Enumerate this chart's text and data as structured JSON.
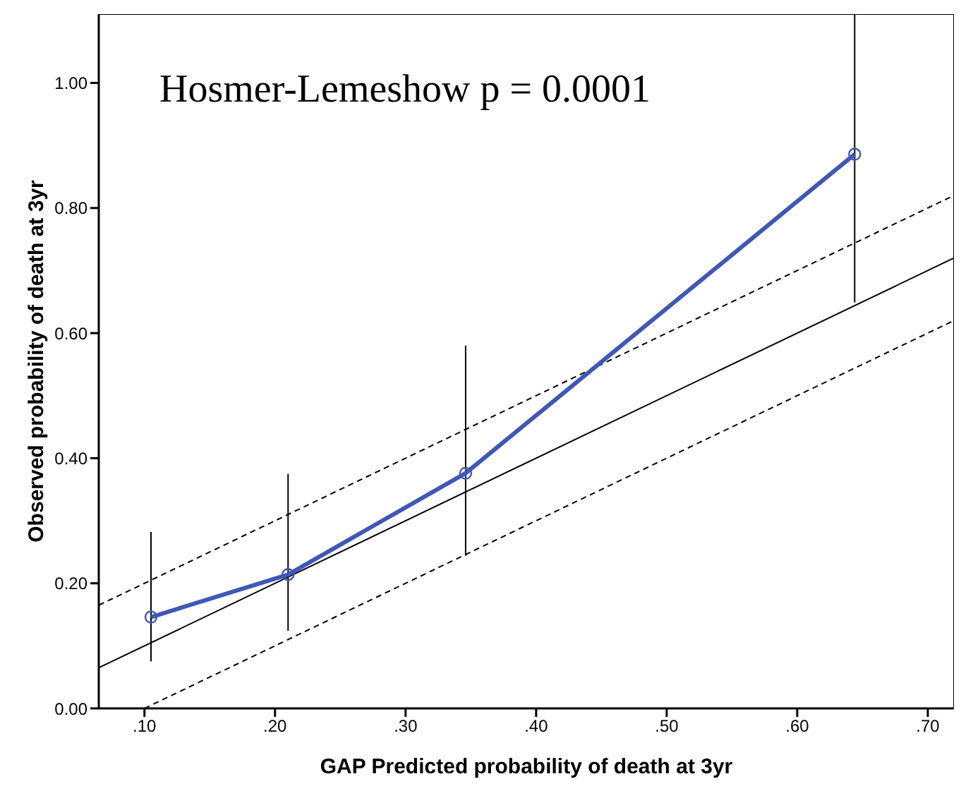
{
  "chart_data": {
    "type": "line",
    "xlabel": "GAP Predicted probability of death at 3yr",
    "ylabel": "Observed probability of death at 3yr",
    "annotations": [
      "Hosmer-Lemeshow p = 0.0001"
    ],
    "xlim": [
      0.065,
      0.72
    ],
    "ylim": [
      0,
      1.11
    ],
    "xticks": [
      {
        "value": 0.1,
        "label": ".10"
      },
      {
        "value": 0.2,
        "label": ".20"
      },
      {
        "value": 0.3,
        "label": ".30"
      },
      {
        "value": 0.4,
        "label": ".40"
      },
      {
        "value": 0.5,
        "label": ".50"
      },
      {
        "value": 0.6,
        "label": ".60"
      },
      {
        "value": 0.7,
        "label": ".70"
      }
    ],
    "yticks": [
      {
        "value": 0,
        "label": "0.00"
      },
      {
        "value": 0.2,
        "label": "0.20"
      },
      {
        "value": 0.4,
        "label": "0.40"
      },
      {
        "value": 0.6,
        "label": "0.60"
      },
      {
        "value": 0.8,
        "label": "0.80"
      },
      {
        "value": 1,
        "label": "1.00"
      }
    ],
    "grid": false,
    "marker": "circle",
    "series": [
      {
        "type": "line",
        "color": "#3f57b5",
        "x": [
          0.105,
          0.21,
          0.346,
          0.644
        ],
        "values": [
          0.146,
          0.214,
          0.376,
          0.886
        ],
        "errors": [
          [
            0.075,
            0.282
          ],
          [
            0.124,
            0.375
          ],
          [
            0.244,
            0.58
          ],
          [
            0.649,
            1.11
          ]
        ]
      },
      {
        "type": "line",
        "color": "#000000",
        "marker": "none",
        "line_style": "solid",
        "x": [
          0.065,
          0.72
        ],
        "values": [
          0.065,
          0.72
        ]
      },
      {
        "type": "line",
        "color": "#000000",
        "marker": "none",
        "line_style": "dashed",
        "x": [
          0.065,
          0.72
        ],
        "values": [
          0.165,
          0.82
        ]
      },
      {
        "type": "line",
        "color": "#000000",
        "marker": "none",
        "line_style": "dashed",
        "x": [
          0.1,
          0.72
        ],
        "values": [
          0,
          0.62
        ]
      }
    ]
  }
}
